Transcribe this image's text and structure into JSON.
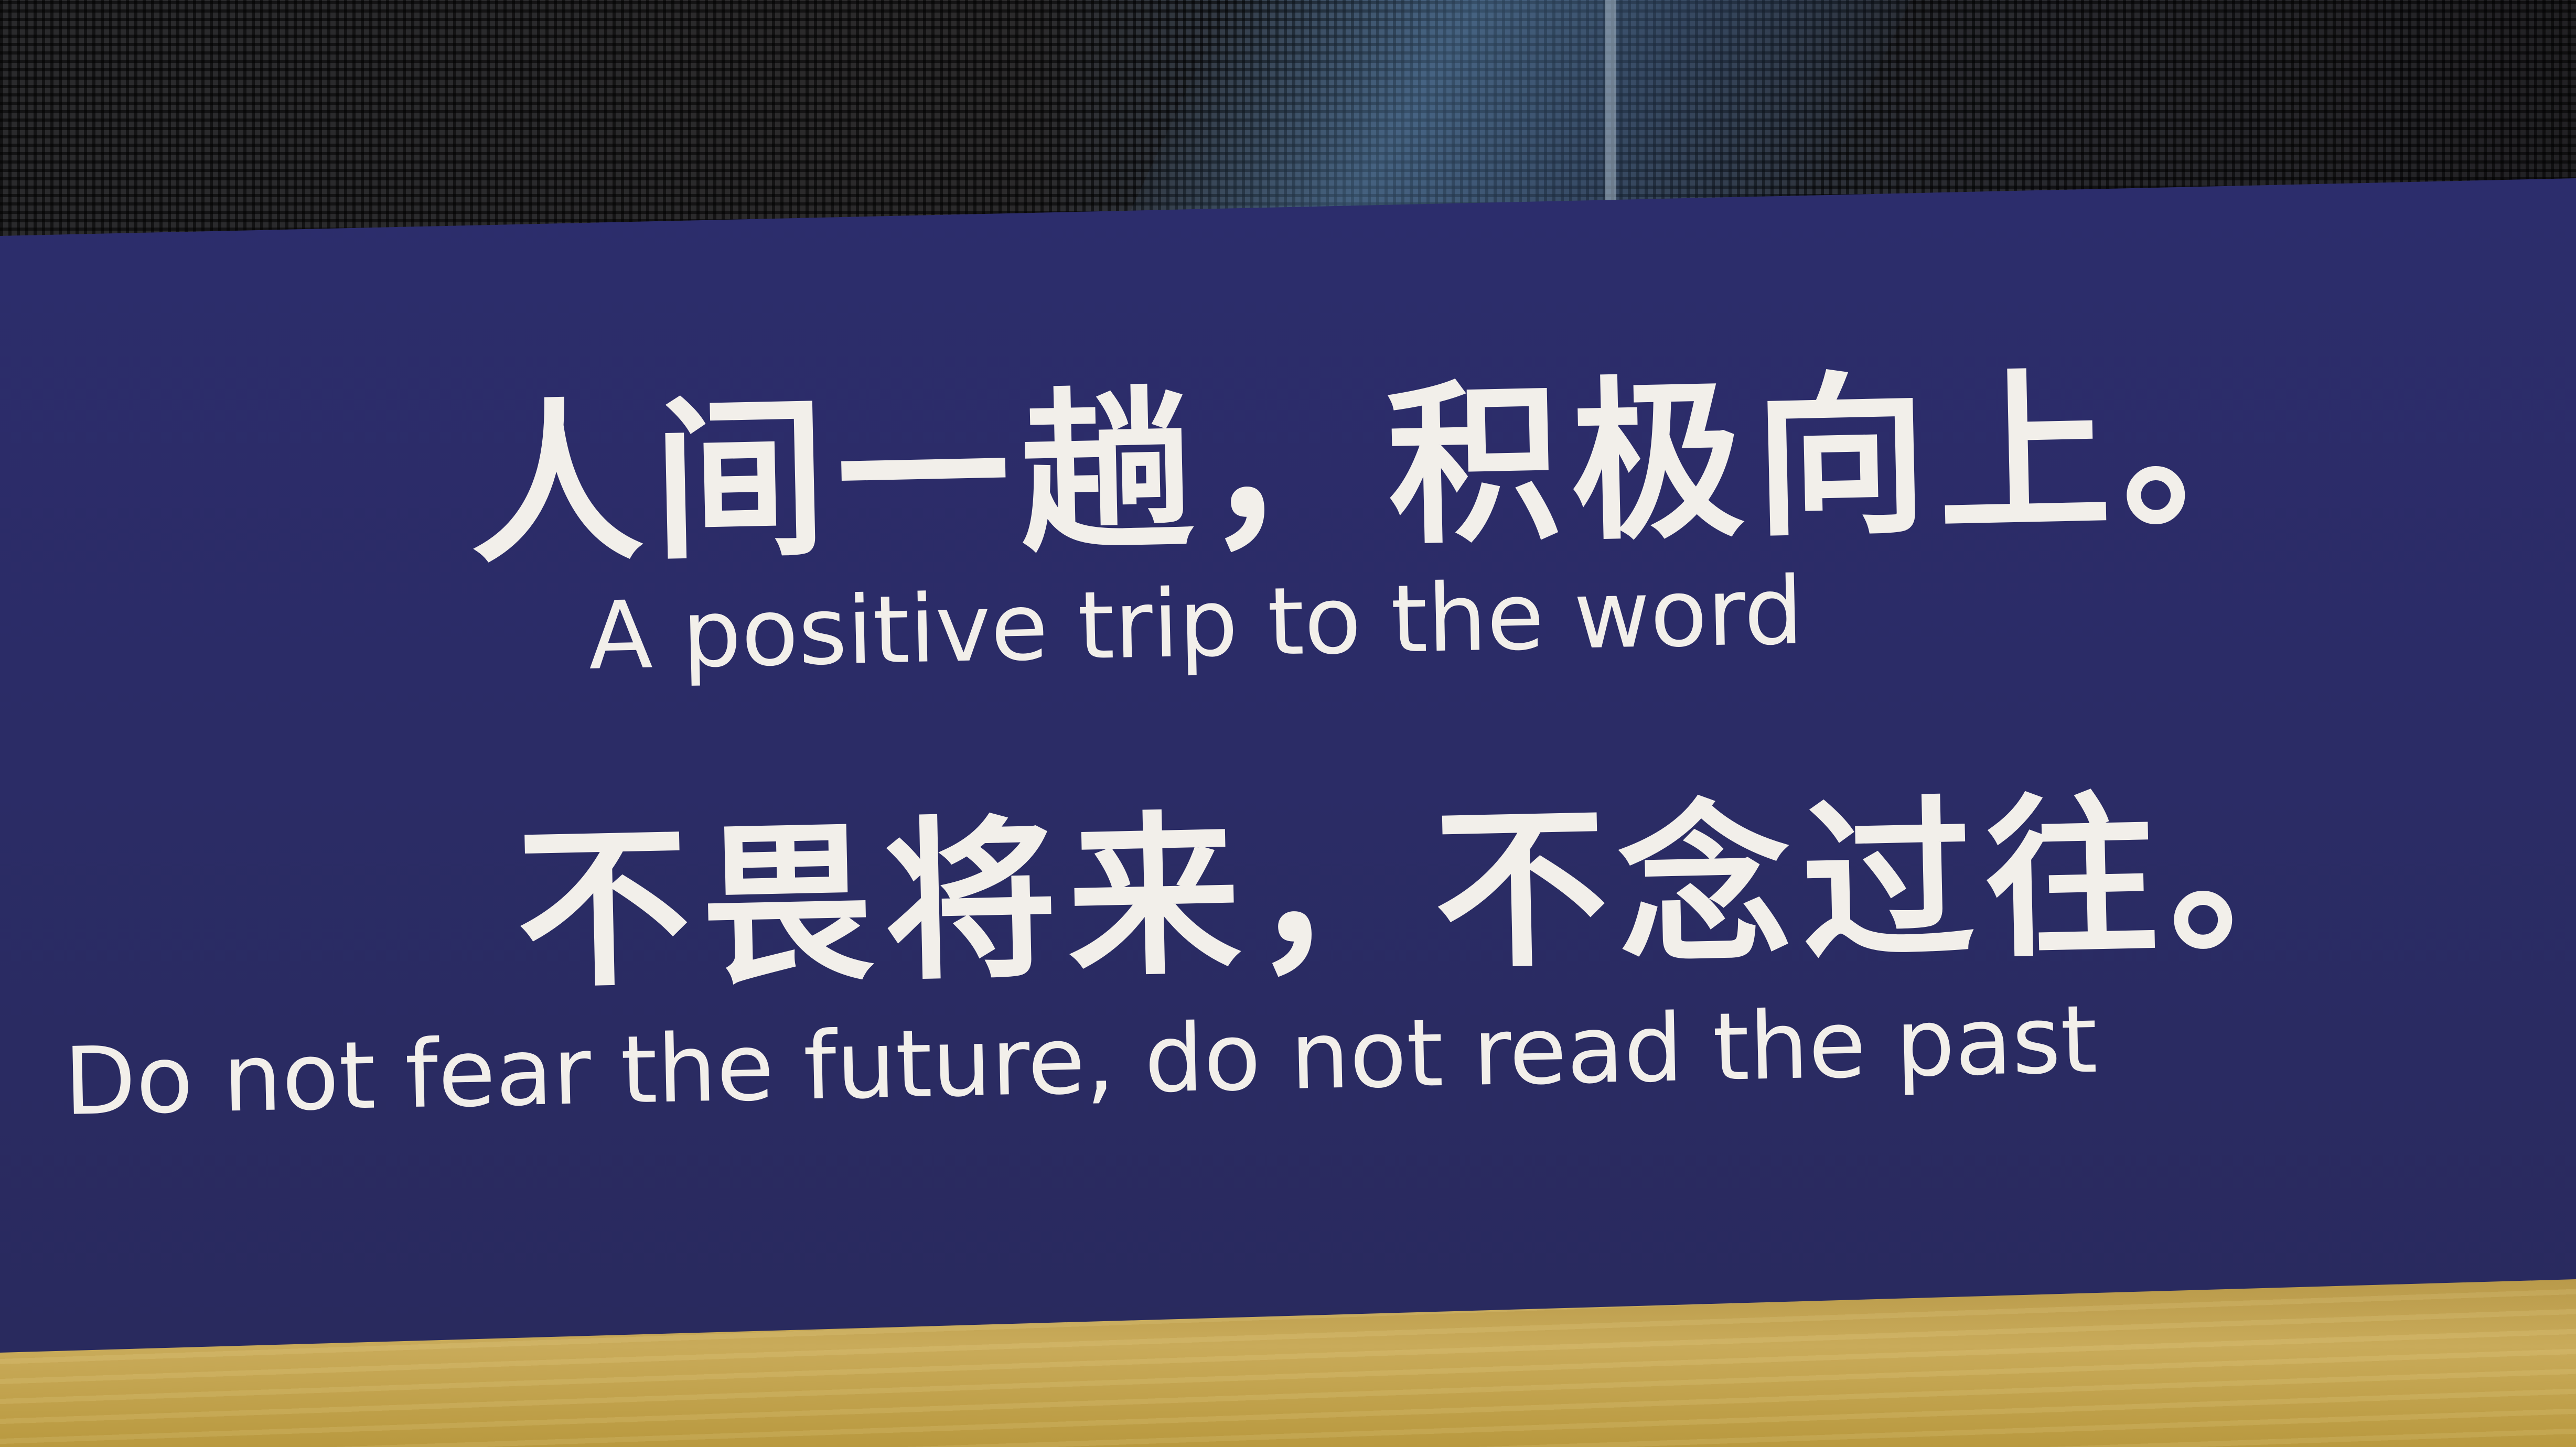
{
  "sign": {
    "chinese_line_1": "人间一趟，积极向上。",
    "english_line_1": "A positive trip to the word",
    "chinese_line_2": "不畏将来，不念过往。",
    "english_line_2": "Do not fear the future, do not read the past"
  },
  "colors": {
    "sign_background": "#2b2c66",
    "text": "#f2efea",
    "shelf": "#c2a350",
    "mesh": "#1e1d20"
  }
}
